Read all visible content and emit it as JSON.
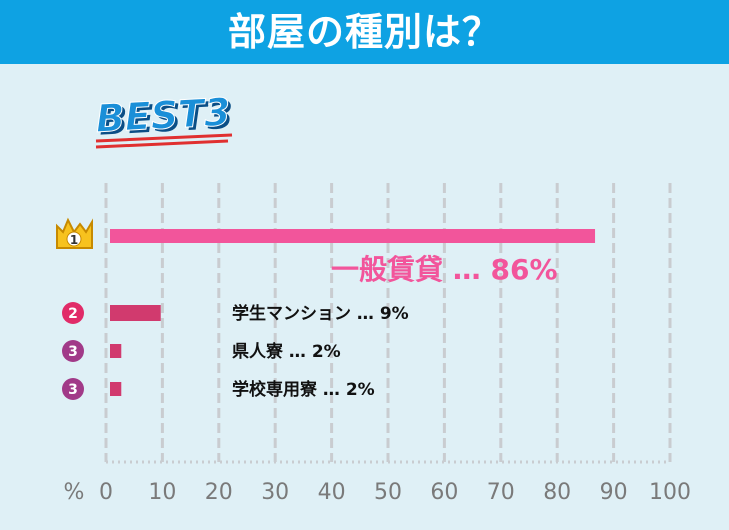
{
  "header": {
    "title": "部屋の種別は？"
  },
  "badge": {
    "text": "BEST3"
  },
  "colors": {
    "header_bg": "#0ea2e3",
    "background": "#dff0f6",
    "bar_top": "#f2559b",
    "bar_other": "#d13a6e",
    "rank_1": "#f7c21e",
    "rank_2": "#e12b68",
    "rank_3": "#a13a88",
    "grid": "#c9ccd0",
    "axis_text": "#7a7a7a",
    "badge_blue": "#1a8fd8",
    "badge_red": "#e03030"
  },
  "chart_data": {
    "type": "bar",
    "orientation": "horizontal",
    "unit_label": "%",
    "xlim": [
      0,
      100
    ],
    "ticks": [
      "0",
      "10",
      "20",
      "30",
      "40",
      "50",
      "60",
      "70",
      "80",
      "90",
      "100"
    ],
    "grid": true,
    "bars": [
      {
        "rank": "1",
        "rank_icon": "crown-icon",
        "label": "一般賃貸",
        "sep": "…",
        "value_label": "86%",
        "value": 86
      },
      {
        "rank": "2",
        "rank_icon": "circle-badge-icon",
        "label": "学生マンション",
        "sep": "…",
        "value_label": "9%",
        "value": 9
      },
      {
        "rank": "3",
        "rank_icon": "circle-badge-icon",
        "label": "県人寮",
        "sep": "…",
        "value_label": "2%",
        "value": 2
      },
      {
        "rank": "3",
        "rank_icon": "circle-badge-icon",
        "label": "学校専用寮",
        "sep": "…",
        "value_label": "2%",
        "value": 2
      }
    ]
  }
}
